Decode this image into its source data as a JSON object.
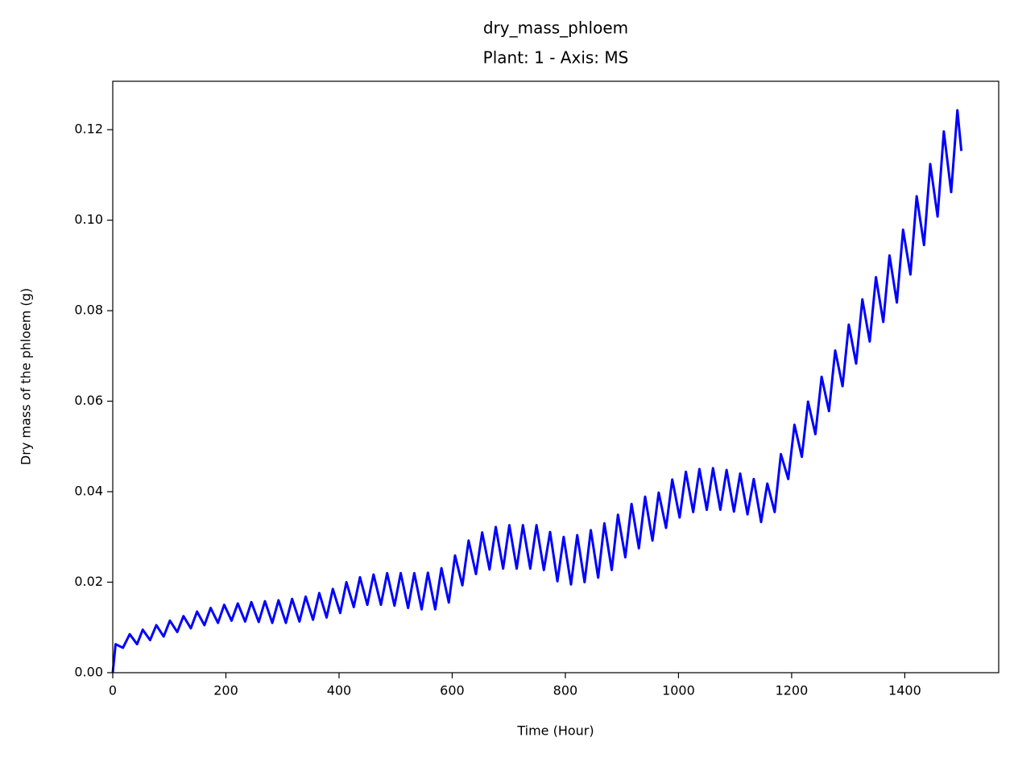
{
  "chart_data": {
    "type": "line",
    "title": "dry_mass_phloem",
    "subtitle": "Plant: 1 - Axis: MS",
    "x_label": "Time (Hour)",
    "y_label": "Dry mass of the phloem (g)",
    "x": [
      0,
      5,
      18,
      30,
      43,
      53,
      66,
      77,
      90,
      101,
      114,
      125,
      138,
      149,
      162,
      173,
      186,
      197,
      210,
      221,
      234,
      245,
      258,
      269,
      282,
      293,
      306,
      317,
      330,
      341,
      354,
      365,
      378,
      389,
      402,
      413,
      426,
      437,
      450,
      461,
      474,
      485,
      498,
      509,
      522,
      533,
      546,
      557,
      570,
      581,
      594,
      605,
      618,
      629,
      642,
      653,
      666,
      677,
      690,
      701,
      714,
      725,
      738,
      749,
      762,
      773,
      786,
      797,
      810,
      821,
      834,
      845,
      858,
      869,
      882,
      893,
      906,
      917,
      930,
      941,
      954,
      965,
      978,
      989,
      1002,
      1013,
      1026,
      1037,
      1050,
      1061,
      1074,
      1085,
      1098,
      1109,
      1122,
      1133,
      1146,
      1157,
      1170,
      1181,
      1194,
      1205,
      1218,
      1229,
      1242,
      1253,
      1266,
      1277,
      1290,
      1301,
      1314,
      1325,
      1338,
      1349,
      1362,
      1373,
      1386,
      1397,
      1410,
      1421,
      1434,
      1445,
      1458,
      1469,
      1482,
      1493,
      1500
    ],
    "series": [
      {
        "color": "#0000ff",
        "values": [
          0,
          0.0063,
          0.0055,
          0.0085,
          0.0063,
          0.0095,
          0.0072,
          0.0105,
          0.008,
          0.0115,
          0.009,
          0.0125,
          0.0098,
          0.0135,
          0.0105,
          0.0143,
          0.011,
          0.015,
          0.0115,
          0.0153,
          0.0113,
          0.0156,
          0.0112,
          0.0158,
          0.011,
          0.016,
          0.011,
          0.0163,
          0.0113,
          0.0168,
          0.0117,
          0.0176,
          0.0122,
          0.0185,
          0.0132,
          0.02,
          0.0145,
          0.0211,
          0.015,
          0.0217,
          0.015,
          0.022,
          0.0148,
          0.022,
          0.0143,
          0.022,
          0.014,
          0.0221,
          0.014,
          0.0231,
          0.0155,
          0.0259,
          0.0193,
          0.0292,
          0.0218,
          0.031,
          0.0228,
          0.0322,
          0.023,
          0.0326,
          0.023,
          0.0326,
          0.023,
          0.0326,
          0.0227,
          0.0311,
          0.0202,
          0.03,
          0.0195,
          0.0304,
          0.02,
          0.0315,
          0.021,
          0.033,
          0.0227,
          0.0349,
          0.0255,
          0.0373,
          0.0275,
          0.0389,
          0.0292,
          0.0398,
          0.032,
          0.0427,
          0.0343,
          0.0444,
          0.0355,
          0.045,
          0.036,
          0.0452,
          0.036,
          0.0448,
          0.0356,
          0.044,
          0.035,
          0.0428,
          0.0333,
          0.0418,
          0.0355,
          0.0483,
          0.0428,
          0.0548,
          0.0477,
          0.0599,
          0.0527,
          0.0654,
          0.0578,
          0.0712,
          0.0633,
          0.0769,
          0.0683,
          0.0825,
          0.0732,
          0.0874,
          0.0775,
          0.0922,
          0.0818,
          0.0979,
          0.088,
          0.1053,
          0.0945,
          0.1124,
          0.1008,
          0.1196,
          0.1062,
          0.1243,
          0.1153
        ]
      }
    ],
    "xlim": [
      0,
      1566
    ],
    "ylim": [
      0,
      0.1307
    ],
    "xticks": [
      0,
      200,
      400,
      600,
      800,
      1000,
      1200,
      1400
    ],
    "yticks": [
      {
        "value": 0,
        "label": "0.00"
      },
      {
        "value": 0.02,
        "label": "0.02"
      },
      {
        "value": 0.04,
        "label": "0.04"
      },
      {
        "value": 0.06,
        "label": "0.06"
      },
      {
        "value": 0.08,
        "label": "0.08"
      },
      {
        "value": 0.1,
        "label": "0.10"
      },
      {
        "value": 0.12,
        "label": "0.12"
      }
    ],
    "grid": false
  }
}
